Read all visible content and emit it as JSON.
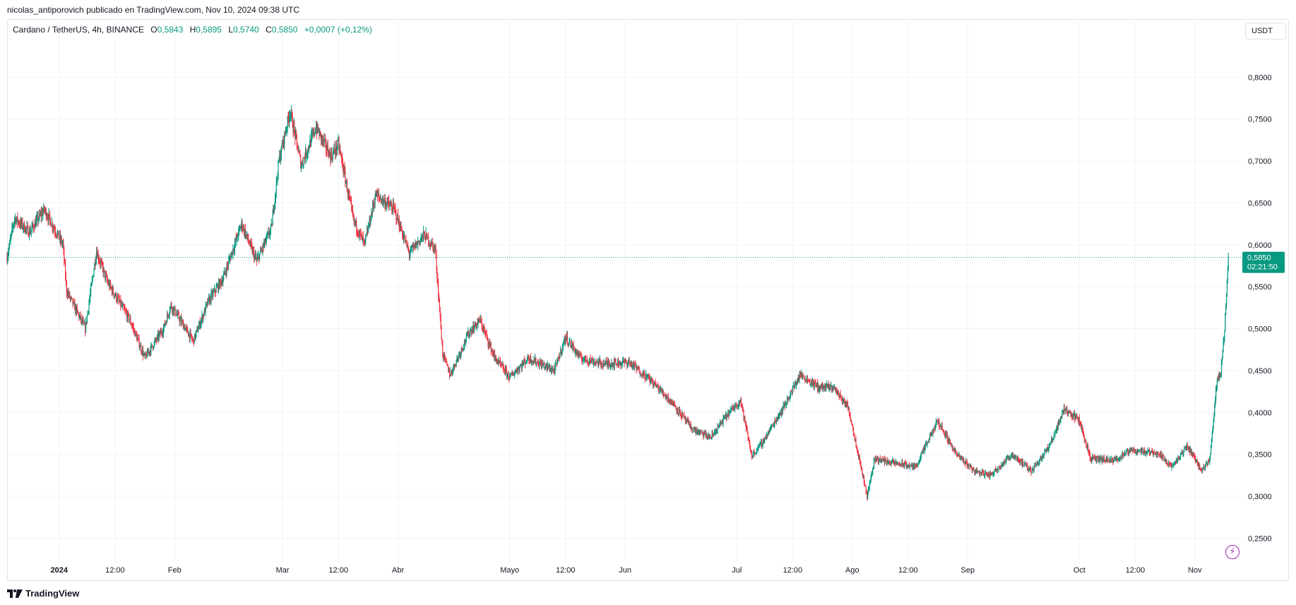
{
  "header": {
    "publisher_line": "nicolas_antiporovich publicado en TradingView.com, Nov 10, 2024 09:38 UTC"
  },
  "legend": {
    "symbol": "Cardano / TetherUS, 4h, BINANCE",
    "open_label": "O",
    "open": "0,5843",
    "high_label": "H",
    "high": "0,5895",
    "low_label": "L",
    "low": "0,5740",
    "close_label": "C",
    "close": "0,5850",
    "change": "+0,0007 (+0,12%)"
  },
  "currency_button": "USDT",
  "price_tag": {
    "price": "0,5850",
    "countdown": "02:21:50"
  },
  "footer": {
    "brand": "TradingView",
    "logo_icon": "tradingview-logo-icon",
    "flash_icon": "lightning-icon"
  },
  "colors": {
    "up": "#089981",
    "down": "#f23645",
    "grid": "#f0f3fa",
    "text": "#131722",
    "tag": "#089981",
    "flash": "#9c27b0"
  },
  "chart_data": {
    "type": "candlestick",
    "series_name": "Cardano / TetherUS, 4h, BINANCE",
    "yaxis_side": "right",
    "ylim": [
      0.22,
      0.85
    ],
    "y_ticks": [
      0.25,
      0.3,
      0.35,
      0.4,
      0.45,
      0.5,
      0.55,
      0.6,
      0.65,
      0.7,
      0.75,
      0.8
    ],
    "y_tick_labels": [
      "0,2500",
      "0,3000",
      "0,3500",
      "0,4000",
      "0,4500",
      "0,5000",
      "0,5500",
      "0,6000",
      "0,6500",
      "0,7000",
      "0,7500",
      "0,8000"
    ],
    "x_ticks": [
      {
        "label": "2024",
        "date": "2024-01-01",
        "bold": true
      },
      {
        "label": "12:00",
        "date": "2024-01-16"
      },
      {
        "label": "Feb",
        "date": "2024-02-01"
      },
      {
        "label": "Mar",
        "date": "2024-03-01"
      },
      {
        "label": "12:00",
        "date": "2024-03-16"
      },
      {
        "label": "Abr",
        "date": "2024-04-01"
      },
      {
        "label": "Mayo",
        "date": "2024-05-01"
      },
      {
        "label": "12:00",
        "date": "2024-05-16"
      },
      {
        "label": "Jun",
        "date": "2024-06-01"
      },
      {
        "label": "Jul",
        "date": "2024-07-01"
      },
      {
        "label": "12:00",
        "date": "2024-07-16"
      },
      {
        "label": "Ago",
        "date": "2024-08-01"
      },
      {
        "label": "12:00",
        "date": "2024-08-16"
      },
      {
        "label": "Sep",
        "date": "2024-09-01"
      },
      {
        "label": "Oct",
        "date": "2024-10-01"
      },
      {
        "label": "12:00",
        "date": "2024-10-16"
      },
      {
        "label": "Nov",
        "date": "2024-11-01"
      }
    ],
    "last_price": 0.585,
    "price_path": [
      {
        "date": "2023-12-18",
        "close": 0.585
      },
      {
        "date": "2023-12-20",
        "close": 0.632
      },
      {
        "date": "2023-12-24",
        "close": 0.615
      },
      {
        "date": "2023-12-28",
        "close": 0.642
      },
      {
        "date": "2024-01-02",
        "close": 0.6
      },
      {
        "date": "2024-01-03",
        "close": 0.545
      },
      {
        "date": "2024-01-08",
        "close": 0.5
      },
      {
        "date": "2024-01-11",
        "close": 0.592
      },
      {
        "date": "2024-01-14",
        "close": 0.555
      },
      {
        "date": "2024-01-20",
        "close": 0.51
      },
      {
        "date": "2024-01-24",
        "close": 0.465
      },
      {
        "date": "2024-01-29",
        "close": 0.5
      },
      {
        "date": "2024-01-31",
        "close": 0.528
      },
      {
        "date": "2024-02-06",
        "close": 0.485
      },
      {
        "date": "2024-02-10",
        "close": 0.532
      },
      {
        "date": "2024-02-14",
        "close": 0.56
      },
      {
        "date": "2024-02-19",
        "close": 0.625
      },
      {
        "date": "2024-02-23",
        "close": 0.58
      },
      {
        "date": "2024-02-27",
        "close": 0.62
      },
      {
        "date": "2024-02-29",
        "close": 0.7
      },
      {
        "date": "2024-03-03",
        "close": 0.76
      },
      {
        "date": "2024-03-06",
        "close": 0.695
      },
      {
        "date": "2024-03-10",
        "close": 0.74
      },
      {
        "date": "2024-03-14",
        "close": 0.705
      },
      {
        "date": "2024-03-16",
        "close": 0.72
      },
      {
        "date": "2024-03-20",
        "close": 0.63
      },
      {
        "date": "2024-03-23",
        "close": 0.6
      },
      {
        "date": "2024-03-26",
        "close": 0.66
      },
      {
        "date": "2024-03-31",
        "close": 0.642
      },
      {
        "date": "2024-04-04",
        "close": 0.59
      },
      {
        "date": "2024-04-08",
        "close": 0.612
      },
      {
        "date": "2024-04-11",
        "close": 0.595
      },
      {
        "date": "2024-04-13",
        "close": 0.47
      },
      {
        "date": "2024-04-15",
        "close": 0.445
      },
      {
        "date": "2024-04-20",
        "close": 0.495
      },
      {
        "date": "2024-04-23",
        "close": 0.51
      },
      {
        "date": "2024-04-27",
        "close": 0.465
      },
      {
        "date": "2024-05-01",
        "close": 0.442
      },
      {
        "date": "2024-05-06",
        "close": 0.465
      },
      {
        "date": "2024-05-13",
        "close": 0.45
      },
      {
        "date": "2024-05-16",
        "close": 0.49
      },
      {
        "date": "2024-05-20",
        "close": 0.465
      },
      {
        "date": "2024-05-26",
        "close": 0.458
      },
      {
        "date": "2024-06-02",
        "close": 0.46
      },
      {
        "date": "2024-06-08",
        "close": 0.438
      },
      {
        "date": "2024-06-14",
        "close": 0.41
      },
      {
        "date": "2024-06-19",
        "close": 0.38
      },
      {
        "date": "2024-06-24",
        "close": 0.37
      },
      {
        "date": "2024-06-28",
        "close": 0.395
      },
      {
        "date": "2024-07-02",
        "close": 0.415
      },
      {
        "date": "2024-07-05",
        "close": 0.348
      },
      {
        "date": "2024-07-08",
        "close": 0.365
      },
      {
        "date": "2024-07-14",
        "close": 0.41
      },
      {
        "date": "2024-07-18",
        "close": 0.445
      },
      {
        "date": "2024-07-23",
        "close": 0.43
      },
      {
        "date": "2024-07-27",
        "close": 0.43
      },
      {
        "date": "2024-07-31",
        "close": 0.405
      },
      {
        "date": "2024-08-05",
        "close": 0.3
      },
      {
        "date": "2024-08-07",
        "close": 0.345
      },
      {
        "date": "2024-08-12",
        "close": 0.34
      },
      {
        "date": "2024-08-18",
        "close": 0.335
      },
      {
        "date": "2024-08-24",
        "close": 0.39
      },
      {
        "date": "2024-08-29",
        "close": 0.35
      },
      {
        "date": "2024-09-03",
        "close": 0.33
      },
      {
        "date": "2024-09-07",
        "close": 0.325
      },
      {
        "date": "2024-09-13",
        "close": 0.35
      },
      {
        "date": "2024-09-18",
        "close": 0.33
      },
      {
        "date": "2024-09-23",
        "close": 0.36
      },
      {
        "date": "2024-09-27",
        "close": 0.405
      },
      {
        "date": "2024-10-01",
        "close": 0.39
      },
      {
        "date": "2024-10-04",
        "close": 0.345
      },
      {
        "date": "2024-10-10",
        "close": 0.342
      },
      {
        "date": "2024-10-15",
        "close": 0.355
      },
      {
        "date": "2024-10-22",
        "close": 0.352
      },
      {
        "date": "2024-10-26",
        "close": 0.335
      },
      {
        "date": "2024-10-30",
        "close": 0.36
      },
      {
        "date": "2024-11-03",
        "close": 0.33
      },
      {
        "date": "2024-11-05",
        "close": 0.345
      },
      {
        "date": "2024-11-07",
        "close": 0.44
      },
      {
        "date": "2024-11-08",
        "close": 0.45
      },
      {
        "date": "2024-11-09",
        "close": 0.5
      },
      {
        "date": "2024-11-10",
        "close": 0.585
      }
    ]
  }
}
